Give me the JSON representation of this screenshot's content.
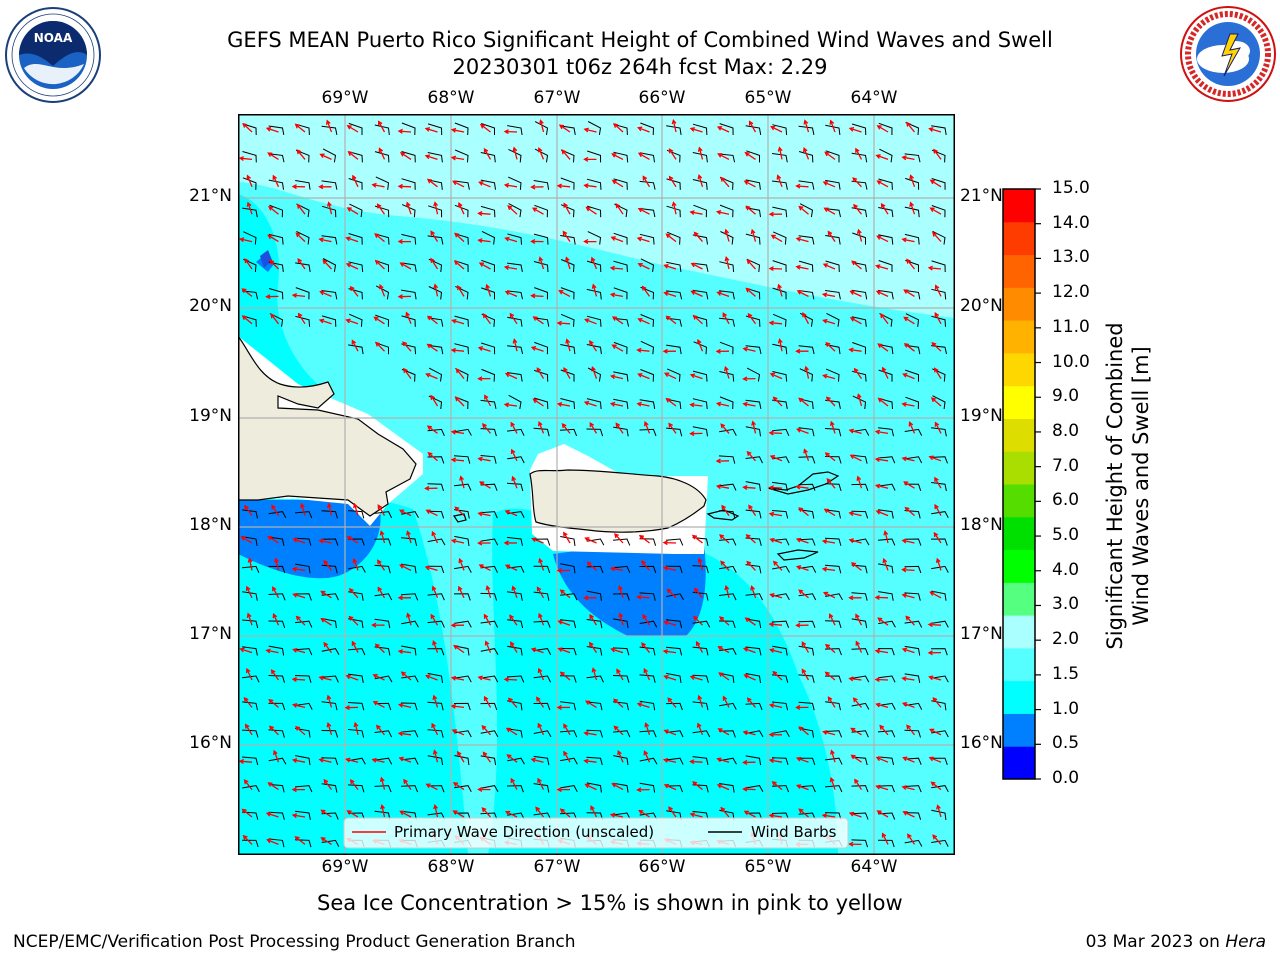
{
  "header": {
    "title_line1": "GEFS MEAN Puerto Rico Significant Height of Combined Wind Waves and Swell",
    "title_line2": "20230301 t06z 264h fcst   Max: 2.29",
    "logo_left": "NOAA",
    "logo_left_ring": "NATIONAL OCEANIC AND ATMOSPHERIC ADMINISTRATION · U.S. DEPARTMENT OF COMMERCE",
    "logo_right_ring": "NATIONAL WEATHER SERVICE"
  },
  "map": {
    "lon_labels": [
      "69°W",
      "68°W",
      "67°W",
      "66°W",
      "65°W",
      "64°W"
    ],
    "lat_labels": [
      "21°N",
      "20°N",
      "19°N",
      "18°N",
      "17°N",
      "16°N"
    ],
    "colors": {
      "ocean_deep": "#0080ff",
      "ocean_1": "#00ffff",
      "ocean_2": "#55ffff",
      "ocean_3": "#aaffff",
      "land": "#eeecdc",
      "wave_arrow": "#ff0000",
      "wind_barb": "#000000"
    },
    "legend": {
      "primary_wave": "Primary Wave Direction (unscaled)",
      "wind_barbs": "Wind Barbs"
    }
  },
  "colorbar": {
    "ticks": [
      "15.0",
      "14.0",
      "13.0",
      "12.0",
      "11.0",
      "10.0",
      "9.0",
      "8.0",
      "7.0",
      "6.0",
      "5.0",
      "4.0",
      "3.0",
      "2.0",
      "1.5",
      "1.0",
      "0.5",
      "0.0"
    ],
    "colors": [
      "#0000ff",
      "#0080ff",
      "#00ffff",
      "#55ffff",
      "#aaffff",
      "#55ff80",
      "#00ff00",
      "#00e000",
      "#55dd00",
      "#aadd00",
      "#dddd00",
      "#ffff00",
      "#ffd700",
      "#ffb300",
      "#ff8c00",
      "#ff6400",
      "#ff3c00",
      "#ff0000"
    ],
    "title_line1": "Significant Height of Combined",
    "title_line2": "Wind Waves and Swell [m]"
  },
  "notes": {
    "sea_ice": "Sea Ice Concentration > 15% is shown in pink to yellow"
  },
  "footer": {
    "left": "NCEP/EMC/Verification Post Processing Product Generation Branch",
    "right_date": "03 Mar 2023 on ",
    "right_host": "Hera"
  }
}
